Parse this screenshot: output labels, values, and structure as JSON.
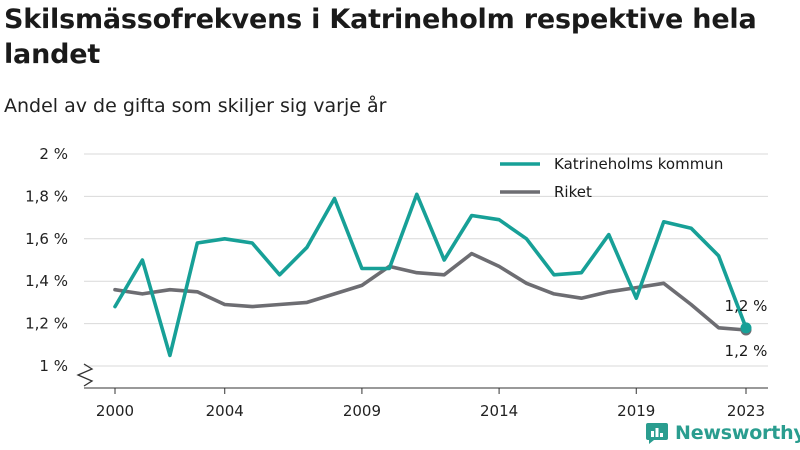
{
  "title": "Skilsmässofrekvens i Katrineholm respektive hela landet",
  "subtitle": "Andel av de gifta som skiljer sig varje år",
  "brand": {
    "name": "Newsworthy",
    "icon": "newsworthy-logo-icon",
    "color": "#2a9d8f"
  },
  "chart_data": {
    "type": "line",
    "title": "Skilsmässofrekvens i Katrineholm respektive hela landet",
    "subtitle": "Andel av de gifta som skiljer sig varje år",
    "xlabel": "",
    "ylabel": "",
    "x": [
      2000,
      2001,
      2002,
      2003,
      2004,
      2005,
      2006,
      2007,
      2008,
      2009,
      2010,
      2011,
      2012,
      2013,
      2014,
      2015,
      2016,
      2017,
      2018,
      2019,
      2020,
      2021,
      2022,
      2023
    ],
    "x_ticks": [
      2000,
      2004,
      2009,
      2014,
      2019,
      2023
    ],
    "x_tick_labels": [
      "2000",
      "2004",
      "2009",
      "2014",
      "2019",
      "2023"
    ],
    "ylim": [
      1.0,
      2.0
    ],
    "y_ticks": [
      1.0,
      1.2,
      1.4,
      1.6,
      1.8,
      2.0
    ],
    "y_tick_labels": [
      "1 %",
      "1,2 %",
      "1,4 %",
      "1,6 %",
      "1,8 %",
      "2 %"
    ],
    "axis_break": true,
    "grid": true,
    "legend_position": "top-right",
    "series": [
      {
        "name": "Katrineholms kommun",
        "color": "#17a097",
        "values": [
          1.28,
          1.5,
          1.05,
          1.58,
          1.6,
          1.58,
          1.43,
          1.56,
          1.79,
          1.46,
          1.46,
          1.81,
          1.5,
          1.71,
          1.69,
          1.6,
          1.43,
          1.44,
          1.62,
          1.32,
          1.68,
          1.65,
          1.52,
          1.18
        ],
        "end_label": "1,2 %"
      },
      {
        "name": "Riket",
        "color": "#6d6d72",
        "values": [
          1.36,
          1.34,
          1.36,
          1.35,
          1.29,
          1.28,
          1.29,
          1.3,
          1.34,
          1.38,
          1.47,
          1.44,
          1.43,
          1.53,
          1.47,
          1.39,
          1.34,
          1.32,
          1.35,
          1.37,
          1.39,
          1.29,
          1.18,
          1.17
        ],
        "end_label": "1,2 %"
      }
    ]
  }
}
